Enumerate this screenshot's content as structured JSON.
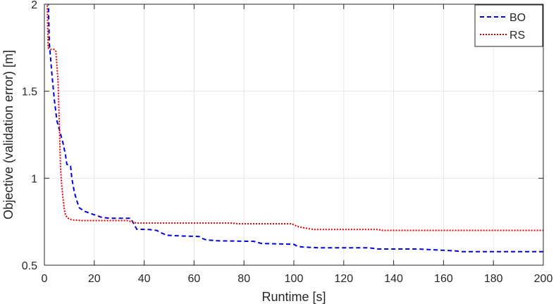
{
  "chart_data": {
    "type": "line",
    "title": "",
    "xlabel": "Runtime [s]",
    "ylabel": "Objective (validation error) [m]",
    "xlim": [
      0,
      200
    ],
    "ylim": [
      0.5,
      2
    ],
    "xticks": [
      0,
      20,
      40,
      60,
      80,
      100,
      120,
      140,
      160,
      180,
      200
    ],
    "yticks": [
      0.5,
      1,
      1.5,
      2
    ],
    "xtick_labels": [
      "0",
      "20",
      "40",
      "60",
      "80",
      "100",
      "120",
      "140",
      "160",
      "180",
      "200"
    ],
    "ytick_labels": [
      "0.5",
      "1",
      "1.5",
      "2"
    ],
    "grid": true,
    "legend_position": "top-right",
    "series": [
      {
        "name": "BO",
        "color": "#0000dd",
        "style": "dashed",
        "points": [
          [
            0,
            2.3
          ],
          [
            1.5,
            2.05
          ],
          [
            2,
            1.77
          ],
          [
            3,
            1.6
          ],
          [
            4,
            1.45
          ],
          [
            5,
            1.33
          ],
          [
            6,
            1.28
          ],
          [
            7.5,
            1.2
          ],
          [
            8.5,
            1.13
          ],
          [
            9,
            1.08
          ],
          [
            10.5,
            1.07
          ],
          [
            11,
            1.0
          ],
          [
            12,
            0.92
          ],
          [
            13,
            0.87
          ],
          [
            14,
            0.83
          ],
          [
            16,
            0.81
          ],
          [
            18,
            0.8
          ],
          [
            20,
            0.79
          ],
          [
            23,
            0.775
          ],
          [
            26,
            0.77
          ],
          [
            33,
            0.77
          ],
          [
            34.5,
            0.77
          ],
          [
            36,
            0.735
          ],
          [
            37,
            0.707
          ],
          [
            42,
            0.705
          ],
          [
            45,
            0.7
          ],
          [
            47,
            0.685
          ],
          [
            49,
            0.672
          ],
          [
            55,
            0.668
          ],
          [
            62,
            0.665
          ],
          [
            63,
            0.655
          ],
          [
            65,
            0.645
          ],
          [
            70,
            0.64
          ],
          [
            80,
            0.638
          ],
          [
            84,
            0.637
          ],
          [
            87,
            0.625
          ],
          [
            95,
            0.622
          ],
          [
            100,
            0.62
          ],
          [
            101,
            0.612
          ],
          [
            103,
            0.605
          ],
          [
            110,
            0.6
          ],
          [
            130,
            0.6
          ],
          [
            134,
            0.593
          ],
          [
            150,
            0.593
          ],
          [
            158,
            0.587
          ],
          [
            165,
            0.582
          ],
          [
            167,
            0.578
          ],
          [
            200,
            0.578
          ]
        ]
      },
      {
        "name": "RS",
        "color": "#dd0000",
        "style": "dotted",
        "points": [
          [
            0,
            2.3
          ],
          [
            1,
            2.1
          ],
          [
            1.5,
            1.75
          ],
          [
            2.5,
            1.74
          ],
          [
            4,
            1.74
          ],
          [
            4.6,
            1.73
          ],
          [
            5,
            1.65
          ],
          [
            5.5,
            1.55
          ],
          [
            6,
            1.3
          ],
          [
            6.5,
            1.05
          ],
          [
            7,
            0.95
          ],
          [
            7.5,
            0.88
          ],
          [
            8,
            0.82
          ],
          [
            8.5,
            0.785
          ],
          [
            9.5,
            0.77
          ],
          [
            11,
            0.76
          ],
          [
            15,
            0.757
          ],
          [
            33,
            0.757
          ],
          [
            35,
            0.75
          ],
          [
            37,
            0.742
          ],
          [
            75,
            0.742
          ],
          [
            78,
            0.738
          ],
          [
            99,
            0.738
          ],
          [
            100,
            0.732
          ],
          [
            102,
            0.72
          ],
          [
            106,
            0.71
          ],
          [
            108,
            0.705
          ],
          [
            134,
            0.705
          ],
          [
            135,
            0.7
          ],
          [
            200,
            0.7
          ]
        ]
      }
    ]
  }
}
